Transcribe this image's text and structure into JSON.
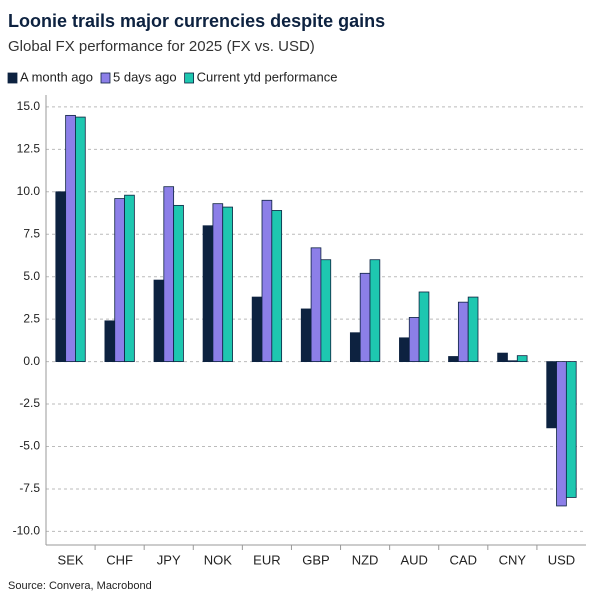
{
  "chart_data": {
    "type": "bar",
    "title": "Loonie trails major currencies despite gains",
    "subtitle": "Global FX performance for 2025 (FX vs. USD)",
    "source": "Source: Convera, Macrobond",
    "categories": [
      "SEK",
      "CHF",
      "JPY",
      "NOK",
      "EUR",
      "GBP",
      "NZD",
      "AUD",
      "CAD",
      "CNY",
      "USD"
    ],
    "series": [
      {
        "name": "A month ago",
        "color": "#0d2240",
        "values": [
          10.0,
          2.4,
          4.8,
          8.0,
          3.8,
          3.1,
          1.7,
          1.4,
          0.3,
          0.5,
          -3.9
        ]
      },
      {
        "name": "5 days ago",
        "color": "#8c7fe8",
        "values": [
          14.5,
          9.6,
          10.3,
          9.3,
          9.5,
          6.7,
          5.2,
          2.6,
          3.5,
          0.05,
          -8.5
        ]
      },
      {
        "name": "Current ytd performance",
        "color": "#1ec7b0",
        "values": [
          14.4,
          9.8,
          9.2,
          9.1,
          8.9,
          6.0,
          6.0,
          4.1,
          3.8,
          0.35,
          -8.0
        ]
      }
    ],
    "ylim": [
      -10.8,
      15.7
    ],
    "yticks": [
      {
        "value": 15,
        "label": "15.0"
      },
      {
        "value": 12.5,
        "label": "12.5"
      },
      {
        "value": 10,
        "label": "10.0"
      },
      {
        "value": 7.5,
        "label": "7.5"
      },
      {
        "value": 5,
        "label": "5.0"
      },
      {
        "value": 2.5,
        "label": "2.5"
      },
      {
        "value": 0,
        "label": "0.0"
      },
      {
        "value": -2.5,
        "label": "-2.5"
      },
      {
        "value": -5,
        "label": "-5.0"
      },
      {
        "value": -7.5,
        "label": "-7.5"
      },
      {
        "value": -10,
        "label": "-10.0"
      }
    ],
    "grid": true,
    "legend": "top"
  }
}
